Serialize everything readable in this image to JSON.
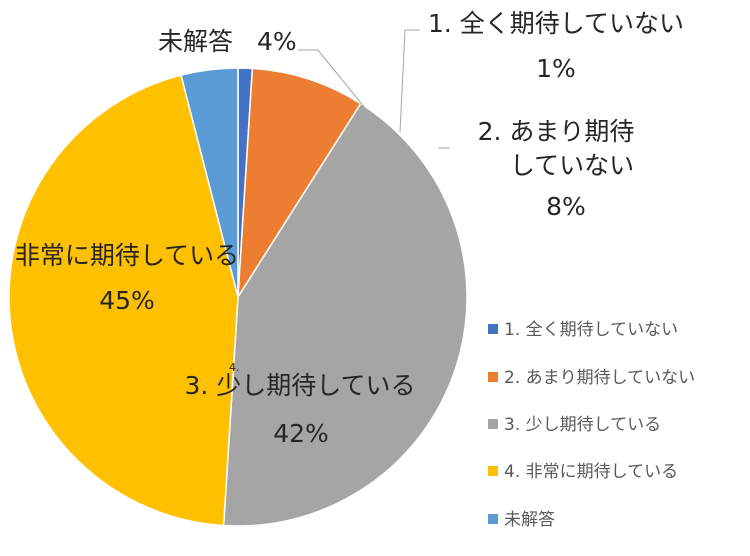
{
  "chart_data": {
    "type": "pie",
    "title": "",
    "categories": [
      "1. 全く期待していない",
      "2. あまり期待していない",
      "3. 少し期待している",
      "4. 非常に期待している",
      "未解答"
    ],
    "values": [
      1,
      8,
      42,
      45,
      4
    ],
    "value_labels": [
      "1%",
      "8%",
      "42%",
      "45%",
      "4%"
    ],
    "colors": [
      "#4472c4",
      "#ed7d31",
      "#a5a5a5",
      "#ffc000",
      "#5b9bd5"
    ],
    "data_labels": [
      [
        "1. 全く期待していない"
      ],
      [
        "2. あまり期待",
        "していない"
      ],
      [
        "3. 少し期待している"
      ],
      [
        "非常に期待している"
      ],
      [
        "未解答"
      ]
    ],
    "stray_label": "4.",
    "legend": {
      "position": "right",
      "entries": [
        "1. 全く期待していない",
        "2. あまり期待していない",
        "3. 少し期待している",
        "4. 非常に期待している",
        "未解答"
      ]
    }
  }
}
